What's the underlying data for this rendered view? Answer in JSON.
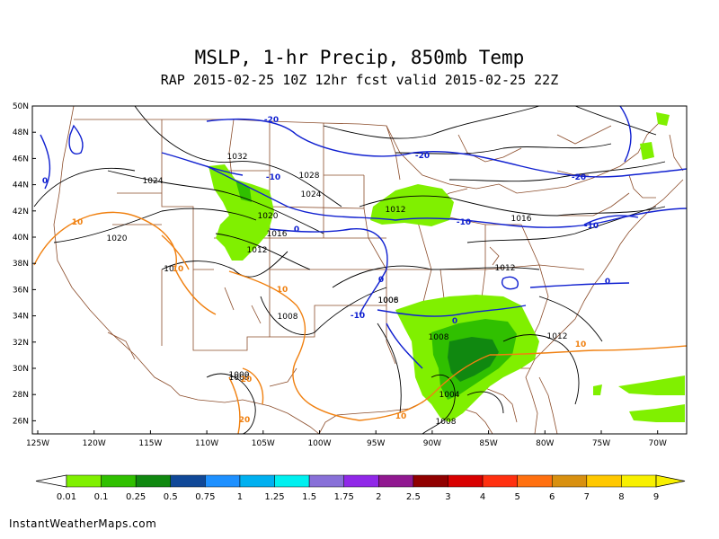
{
  "header": {
    "title": "MSLP, 1-hr Precip, 850mb Temp",
    "subtitle": "RAP 2015-02-25 10Z 12hr fcst valid 2015-02-25 22Z"
  },
  "axes": {
    "lat_labels": [
      "50N",
      "48N",
      "46N",
      "44N",
      "42N",
      "40N",
      "38N",
      "36N",
      "34N",
      "32N",
      "30N",
      "28N",
      "26N"
    ],
    "lon_labels": [
      "125W",
      "120W",
      "115W",
      "110W",
      "105W",
      "100W",
      "95W",
      "90W",
      "85W",
      "80W",
      "75W",
      "70W"
    ]
  },
  "isobars": {
    "color": "#000000",
    "labels": [
      "1032",
      "1028",
      "1024",
      "1024",
      "1020",
      "1020",
      "1016",
      "1016",
      "1012",
      "1012",
      "1012",
      "1012",
      "1008",
      "1008",
      "1008",
      "1008",
      "1008",
      "1004",
      "1000",
      "1006",
      "10"
    ]
  },
  "isotherms": {
    "cold_color": "#1020d0",
    "warm_color": "#f08010",
    "labels": [
      "-20",
      "-20",
      "-20",
      "-10",
      "-10",
      "-10",
      "0",
      "0",
      "0",
      "0",
      "0",
      "-10",
      "10",
      "10",
      "10",
      "10",
      "10",
      "20",
      "20"
    ]
  },
  "colorbar": {
    "labels": [
      "0.01",
      "0.1",
      "0.25",
      "0.5",
      "0.75",
      "1",
      "1.25",
      "1.5",
      "1.75",
      "2",
      "2.5",
      "3",
      "4",
      "5",
      "6",
      "7",
      "8",
      "9"
    ],
    "colors": [
      "#80f000",
      "#30c000",
      "#108810",
      "#104898",
      "#1e90ff",
      "#00b0f0",
      "#00f0f0",
      "#8870d8",
      "#9028e8",
      "#901890",
      "#900000",
      "#d80000",
      "#ff3010",
      "#ff7010",
      "#d89010",
      "#ffc800",
      "#f8f000"
    ]
  },
  "footer": {
    "credit": "InstantWeatherMaps.com"
  }
}
